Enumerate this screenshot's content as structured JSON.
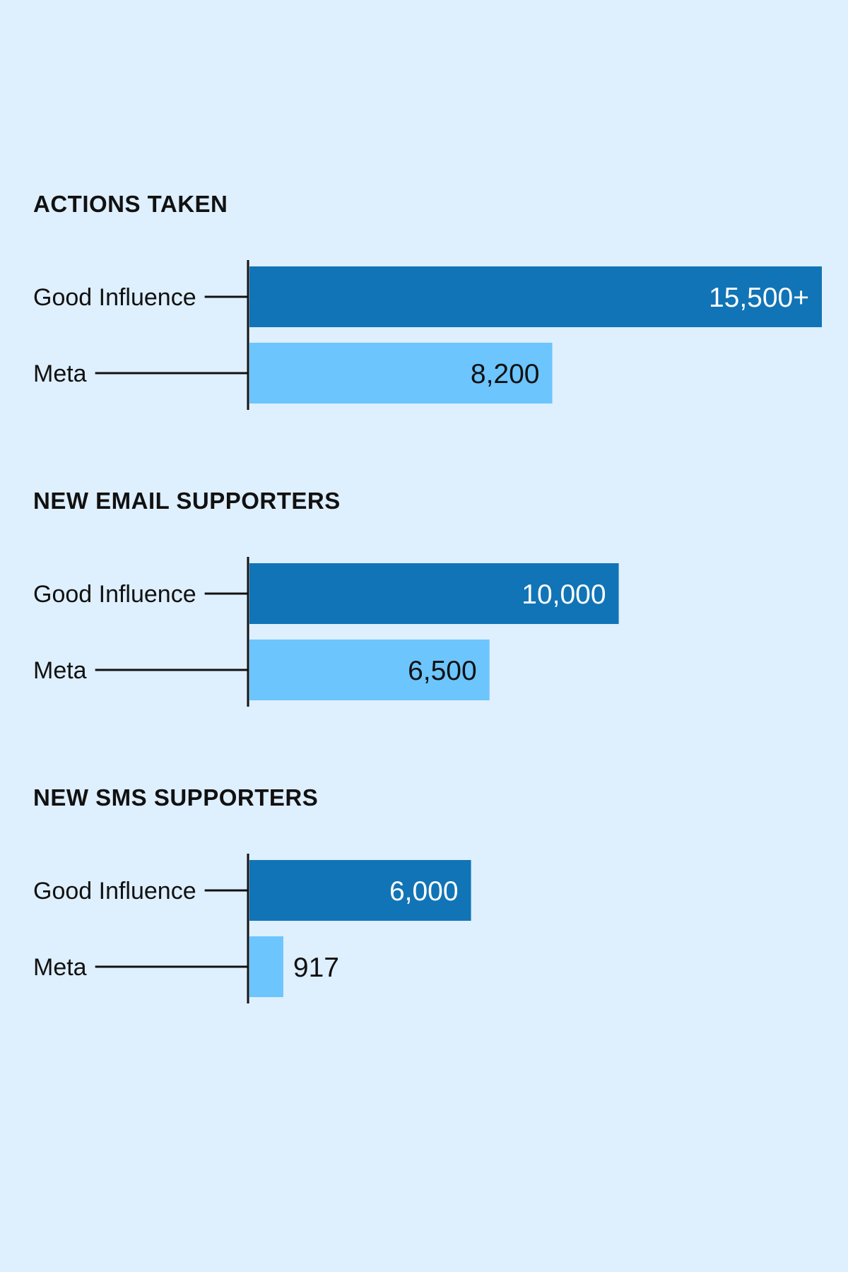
{
  "chart_data": [
    {
      "type": "bar",
      "orientation": "horizontal",
      "title": "ACTIONS TAKEN",
      "categories": [
        "Good Influence",
        "Meta"
      ],
      "values": [
        15500,
        8200
      ],
      "value_labels": [
        "15,500+",
        "8,200"
      ]
    },
    {
      "type": "bar",
      "orientation": "horizontal",
      "title": "NEW EMAIL SUPPORTERS",
      "categories": [
        "Good Influence",
        "Meta"
      ],
      "values": [
        10000,
        6500
      ],
      "value_labels": [
        "10,000",
        "6,500"
      ]
    },
    {
      "type": "bar",
      "orientation": "horizontal",
      "title": "NEW SMS SUPPORTERS",
      "categories": [
        "Good Influence",
        "Meta"
      ],
      "values": [
        6000,
        917
      ],
      "value_labels": [
        "6,000",
        "917"
      ]
    }
  ],
  "colors": {
    "background": "#deeffd",
    "good_influence_bar": "#1174b6",
    "meta_bar": "#6cc5fd",
    "good_influence_label": "#ffffff",
    "meta_label": "#111111",
    "axis": "#111111"
  }
}
